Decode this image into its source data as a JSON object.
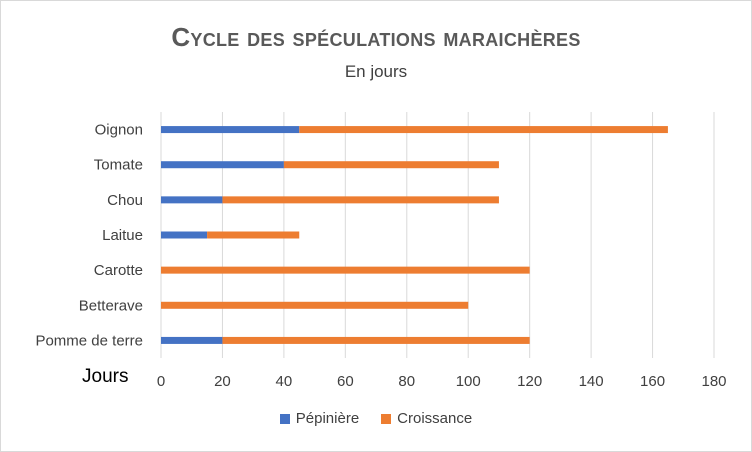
{
  "chart_data": {
    "type": "bar",
    "orientation": "horizontal",
    "stacked": true,
    "title": "Cycle des spéculations maraichères",
    "subtitle": "En jours",
    "xlabel": "Jours",
    "xlim": [
      0,
      180
    ],
    "xticks": [
      "0",
      "20",
      "40",
      "60",
      "80",
      "100",
      "120",
      "140",
      "160",
      "180"
    ],
    "grid": true,
    "legend_position": "bottom",
    "categories": [
      "Pomme de terre",
      "Betterave",
      "Carotte",
      "Laitue",
      "Chou",
      "Tomate",
      "Oignon"
    ],
    "series": [
      {
        "name": "Pépinière",
        "color": "#4472c4",
        "values": [
          20,
          0,
          0,
          15,
          20,
          40,
          45
        ]
      },
      {
        "name": "Croissance",
        "color": "#ed7d31",
        "values": [
          100,
          100,
          120,
          30,
          90,
          70,
          120
        ]
      }
    ]
  }
}
